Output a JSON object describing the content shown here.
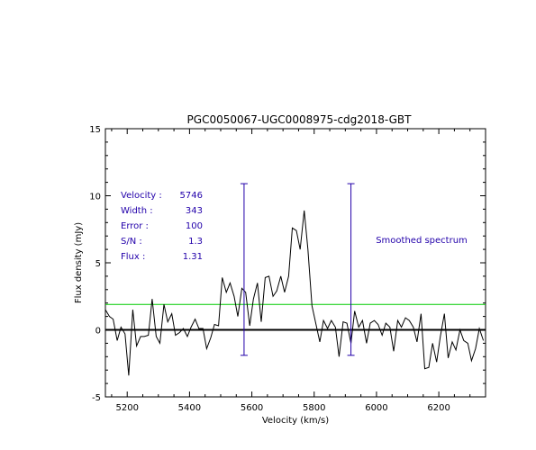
{
  "chart_data": {
    "type": "line",
    "title": "PGC0050067-UGC0008975-cdg2018-GBT",
    "xlabel": "Velocity (km/s)",
    "ylabel": "Flux density (mJy)",
    "xlim": [
      5130,
      6350
    ],
    "ylim": [
      -5,
      15
    ],
    "x_ticks": [
      5200,
      5400,
      5600,
      5800,
      6000,
      6200
    ],
    "x_tick_labels": [
      "5200",
      "5400",
      "5600",
      "5800",
      "6000",
      "6200"
    ],
    "y_ticks": [
      -5,
      0,
      5,
      10,
      15
    ],
    "y_tick_labels": [
      "-5",
      "0",
      "5",
      "10",
      "15"
    ],
    "grid": false,
    "annotation": "Smoothed spectrum",
    "stats": [
      {
        "label": "Velocity :",
        "value": "5746"
      },
      {
        "label": "Width :",
        "value": "343"
      },
      {
        "label": "Error :",
        "value": "100"
      },
      {
        "label": "S/N :",
        "value": "1.3"
      },
      {
        "label": "Flux :",
        "value": "1.31"
      }
    ],
    "zero_line": 0,
    "rms_level": 1.9,
    "markers": [
      {
        "x": 5575,
        "y_low": -1.9,
        "y_high": 10.9
      },
      {
        "x": 5918,
        "y_low": -1.9,
        "y_high": 10.9
      }
    ],
    "colors": {
      "spectrum": "#000000",
      "markers": "#2200aa",
      "text": "#2200aa",
      "rms": "#00cc00",
      "zero": "#000000"
    },
    "series": [
      {
        "values": [
          [
            5130,
            1.5
          ],
          [
            5143,
            1.0
          ],
          [
            5155,
            0.8
          ],
          [
            5168,
            -0.8
          ],
          [
            5180,
            0.2
          ],
          [
            5193,
            -0.3
          ],
          [
            5205,
            -3.4
          ],
          [
            5218,
            1.5
          ],
          [
            5230,
            -1.2
          ],
          [
            5243,
            -0.5
          ],
          [
            5255,
            -0.5
          ],
          [
            5268,
            -0.4
          ],
          [
            5280,
            2.3
          ],
          [
            5293,
            -0.5
          ],
          [
            5305,
            -1.0
          ],
          [
            5318,
            1.9
          ],
          [
            5330,
            0.6
          ],
          [
            5343,
            1.2
          ],
          [
            5355,
            -0.4
          ],
          [
            5368,
            -0.2
          ],
          [
            5380,
            0.1
          ],
          [
            5393,
            -0.5
          ],
          [
            5405,
            0.2
          ],
          [
            5418,
            0.8
          ],
          [
            5430,
            0.1
          ],
          [
            5443,
            0.1
          ],
          [
            5455,
            -1.4
          ],
          [
            5468,
            -0.6
          ],
          [
            5480,
            0.4
          ],
          [
            5493,
            0.3
          ],
          [
            5505,
            3.9
          ],
          [
            5518,
            2.8
          ],
          [
            5530,
            3.5
          ],
          [
            5543,
            2.5
          ],
          [
            5555,
            1.0
          ],
          [
            5568,
            3.1
          ],
          [
            5580,
            2.8
          ],
          [
            5593,
            0.3
          ],
          [
            5605,
            2.3
          ],
          [
            5618,
            3.5
          ],
          [
            5630,
            0.6
          ],
          [
            5643,
            3.9
          ],
          [
            5655,
            4.0
          ],
          [
            5668,
            2.5
          ],
          [
            5680,
            2.9
          ],
          [
            5693,
            4.0
          ],
          [
            5705,
            2.8
          ],
          [
            5718,
            4.0
          ],
          [
            5730,
            7.6
          ],
          [
            5743,
            7.4
          ],
          [
            5755,
            6.0
          ],
          [
            5768,
            8.9
          ],
          [
            5780,
            6.0
          ],
          [
            5793,
            1.8
          ],
          [
            5805,
            0.5
          ],
          [
            5818,
            -0.9
          ],
          [
            5830,
            0.7
          ],
          [
            5843,
            0.1
          ],
          [
            5855,
            0.7
          ],
          [
            5868,
            0.2
          ],
          [
            5880,
            -2.0
          ],
          [
            5893,
            0.6
          ],
          [
            5905,
            0.5
          ],
          [
            5918,
            -1.0
          ],
          [
            5930,
            1.4
          ],
          [
            5943,
            0.2
          ],
          [
            5955,
            0.7
          ],
          [
            5968,
            -1.0
          ],
          [
            5980,
            0.5
          ],
          [
            5993,
            0.7
          ],
          [
            6005,
            0.4
          ],
          [
            6018,
            -0.4
          ],
          [
            6030,
            0.5
          ],
          [
            6043,
            0.2
          ],
          [
            6055,
            -1.6
          ],
          [
            6068,
            0.7
          ],
          [
            6080,
            0.2
          ],
          [
            6093,
            0.9
          ],
          [
            6105,
            0.7
          ],
          [
            6118,
            0.2
          ],
          [
            6130,
            -0.9
          ],
          [
            6143,
            1.2
          ],
          [
            6155,
            -2.9
          ],
          [
            6168,
            -2.8
          ],
          [
            6180,
            -1.0
          ],
          [
            6193,
            -2.4
          ],
          [
            6205,
            -0.5
          ],
          [
            6218,
            1.2
          ],
          [
            6230,
            -2.1
          ],
          [
            6243,
            -0.9
          ],
          [
            6255,
            -1.5
          ],
          [
            6268,
            0.0
          ],
          [
            6280,
            -0.8
          ],
          [
            6293,
            -1.0
          ],
          [
            6305,
            -2.3
          ],
          [
            6318,
            -1.4
          ],
          [
            6330,
            0.1
          ],
          [
            6343,
            -0.8
          ]
        ]
      }
    ]
  }
}
